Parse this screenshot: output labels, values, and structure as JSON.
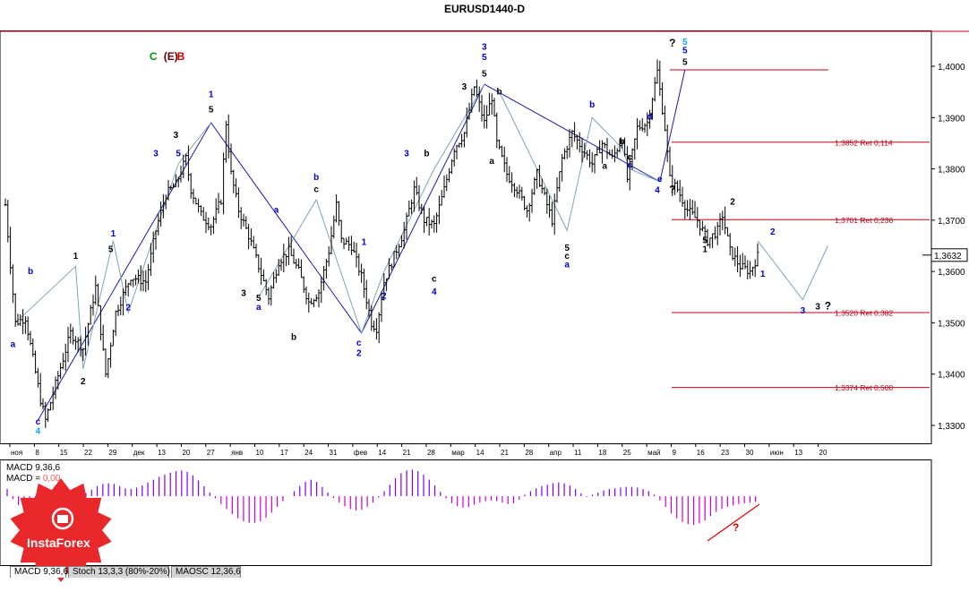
{
  "window": {
    "title": "EURUSD1440-D"
  },
  "price_badge": "1,3632",
  "colors": {
    "up": "#000000",
    "wave_line": "#1a1aaa",
    "thin_line": "#7fa3b8",
    "fib": "#c0001a",
    "macd_pos": "#7b00ff",
    "macd_neg": "#cc00cc",
    "accent_red": "#cc0000"
  },
  "chart_data": [
    {
      "type": "candlestick",
      "title": "EURUSD1440-D",
      "ylim": [
        1.327,
        1.406
      ],
      "y_ticks": [
        "1,4000",
        "1,3900",
        "1,3800",
        "1,3700",
        "1,3600",
        "1,3500",
        "1,3400",
        "1,3300"
      ],
      "y_tick_values": [
        1.4,
        1.39,
        1.38,
        1.37,
        1.36,
        1.35,
        1.34,
        1.33
      ],
      "x_ticks": [
        "ноя",
        "8",
        "15",
        "22",
        "29",
        "дек",
        "13",
        "20",
        "27",
        "янв",
        "10",
        "17",
        "24",
        "31",
        "фев",
        "14",
        "21",
        "28",
        "мар",
        "14",
        "21",
        "28",
        "апр",
        "11",
        "18",
        "25",
        "май",
        "9",
        "16",
        "23",
        "30",
        "июн",
        "13",
        "20"
      ],
      "fib_levels": [
        {
          "price": 1.3993,
          "label": ""
        },
        {
          "price": 1.3852,
          "label": "1,3852 Ret 0,114"
        },
        {
          "price": 1.3701,
          "label": "1,3701 Ret 0,236"
        },
        {
          "price": 1.352,
          "label": "1,3520 Ret 0,382"
        },
        {
          "price": 1.3374,
          "label": "1,3374 Ret 0,500"
        }
      ],
      "price_path": [
        [
          0,
          1.373
        ],
        [
          4,
          1.35
        ],
        [
          8,
          1.351
        ],
        [
          14,
          1.335
        ],
        [
          16,
          1.331
        ],
        [
          20,
          1.338
        ],
        [
          26,
          1.348
        ],
        [
          31,
          1.345
        ],
        [
          36,
          1.357
        ],
        [
          40,
          1.34
        ],
        [
          44,
          1.352
        ],
        [
          50,
          1.359
        ],
        [
          56,
          1.358
        ],
        [
          60,
          1.368
        ],
        [
          64,
          1.375
        ],
        [
          68,
          1.377
        ],
        [
          72,
          1.382
        ],
        [
          74,
          1.376
        ],
        [
          78,
          1.371
        ],
        [
          82,
          1.369
        ],
        [
          86,
          1.374
        ],
        [
          88,
          1.389
        ],
        [
          90,
          1.379
        ],
        [
          93,
          1.372
        ],
        [
          97,
          1.367
        ],
        [
          101,
          1.361
        ],
        [
          105,
          1.355
        ],
        [
          109,
          1.362
        ],
        [
          113,
          1.364
        ],
        [
          117,
          1.36
        ],
        [
          121,
          1.354
        ],
        [
          125,
          1.356
        ],
        [
          129,
          1.364
        ],
        [
          132,
          1.373
        ],
        [
          134,
          1.366
        ],
        [
          138,
          1.365
        ],
        [
          142,
          1.359
        ],
        [
          146,
          1.35
        ],
        [
          148,
          1.349
        ],
        [
          151,
          1.358
        ],
        [
          155,
          1.363
        ],
        [
          159,
          1.368
        ],
        [
          163,
          1.376
        ],
        [
          167,
          1.37
        ],
        [
          171,
          1.369
        ],
        [
          175,
          1.376
        ],
        [
          179,
          1.384
        ],
        [
          183,
          1.387
        ],
        [
          187,
          1.396
        ],
        [
          191,
          1.389
        ],
        [
          194,
          1.394
        ],
        [
          196,
          1.385
        ],
        [
          200,
          1.379
        ],
        [
          204,
          1.376
        ],
        [
          208,
          1.372
        ],
        [
          212,
          1.379
        ],
        [
          216,
          1.373
        ],
        [
          218,
          1.37
        ],
        [
          222,
          1.382
        ],
        [
          226,
          1.387
        ],
        [
          230,
          1.384
        ],
        [
          234,
          1.381
        ],
        [
          238,
          1.385
        ],
        [
          242,
          1.382
        ],
        [
          246,
          1.386
        ],
        [
          248,
          1.378
        ],
        [
          252,
          1.388
        ],
        [
          256,
          1.389
        ],
        [
          260,
          1.399
        ],
        [
          263,
          1.388
        ],
        [
          265,
          1.378
        ],
        [
          268,
          1.376
        ],
        [
          272,
          1.372
        ],
        [
          276,
          1.37
        ],
        [
          280,
          1.366
        ],
        [
          284,
          1.368
        ],
        [
          286,
          1.371
        ],
        [
          289,
          1.364
        ],
        [
          293,
          1.361
        ],
        [
          297,
          1.36
        ],
        [
          300,
          1.363
        ]
      ],
      "wave_labels": [
        {
          "t": "C",
          "b": 59,
          "p": 1.4012,
          "c": "#009900"
        },
        {
          "t": "(E)",
          "b": 66,
          "p": 1.4012,
          "c": "#660000"
        },
        {
          "t": "B",
          "b": 70,
          "p": 1.4012,
          "c": "#cc0000"
        },
        {
          "t": "3",
          "b": 191,
          "p": 1.4032,
          "c": "#0000cc"
        },
        {
          "t": "5",
          "b": 191,
          "p": 1.4012,
          "c": "#0000cc"
        },
        {
          "t": "5",
          "b": 191,
          "p": 1.398,
          "c": "#000000"
        },
        {
          "t": "?",
          "b": 266,
          "p": 1.4038,
          "c": "#000000"
        },
        {
          "t": "5",
          "b": 271,
          "p": 1.4042,
          "c": "#00aaff"
        },
        {
          "t": "5",
          "b": 271,
          "p": 1.4025,
          "c": "#0000cc"
        },
        {
          "t": "5",
          "b": 271,
          "p": 1.4003,
          "c": "#000000"
        },
        {
          "t": "1",
          "b": 82,
          "p": 1.394,
          "c": "#0000cc"
        },
        {
          "t": "5",
          "b": 82,
          "p": 1.391,
          "c": "#000000"
        },
        {
          "t": "3",
          "b": 68,
          "p": 1.386,
          "c": "#000000"
        },
        {
          "t": "3",
          "b": 60,
          "p": 1.3825,
          "c": "#0000cc"
        },
        {
          "t": "5",
          "b": 69,
          "p": 1.3825,
          "c": "#0000cc"
        },
        {
          "t": "b",
          "b": 124,
          "p": 1.3778,
          "c": "#0000cc"
        },
        {
          "t": "c",
          "b": 124,
          "p": 1.3755,
          "c": "#000000"
        },
        {
          "t": "b",
          "b": 197,
          "p": 1.3945,
          "c": "#000000"
        },
        {
          "t": "3",
          "b": 183,
          "p": 1.3955,
          "c": "#000000"
        },
        {
          "t": "b",
          "b": 234,
          "p": 1.392,
          "c": "#0000cc"
        },
        {
          "t": "d",
          "b": 257,
          "p": 1.3896,
          "c": "#0000cc"
        },
        {
          "t": "b",
          "b": 246,
          "p": 1.3848,
          "c": "#000000"
        },
        {
          "t": "c",
          "b": 249,
          "p": 1.3818,
          "c": "#000000"
        },
        {
          "t": "c",
          "b": 249,
          "p": 1.3802,
          "c": "#0000cc"
        },
        {
          "t": "e",
          "b": 261,
          "p": 1.3775,
          "c": "#0000cc"
        },
        {
          "t": "4",
          "b": 260,
          "p": 1.3753,
          "c": "#0000cc"
        },
        {
          "t": "?",
          "b": 266,
          "p": 1.3753,
          "c": "#000000"
        },
        {
          "t": "a",
          "b": 239,
          "p": 1.38,
          "c": "#000000"
        },
        {
          "t": "a",
          "b": 194,
          "p": 1.381,
          "c": "#000000"
        },
        {
          "t": "a",
          "b": 108,
          "p": 1.3715,
          "c": "#0000cc"
        },
        {
          "t": "3",
          "b": 160,
          "p": 1.3825,
          "c": "#0000cc"
        },
        {
          "t": "b",
          "b": 168,
          "p": 1.3825,
          "c": "#000000"
        },
        {
          "t": "1",
          "b": 143,
          "p": 1.3652,
          "c": "#0000cc"
        },
        {
          "t": "c",
          "b": 171,
          "p": 1.358,
          "c": "#000000"
        },
        {
          "t": "4",
          "b": 171,
          "p": 1.3555,
          "c": "#0000cc"
        },
        {
          "t": "2",
          "b": 151,
          "p": 1.3547,
          "c": "#0000cc"
        },
        {
          "t": "5",
          "b": 224,
          "p": 1.364,
          "c": "#000000"
        },
        {
          "t": "c",
          "b": 224,
          "p": 1.3625,
          "c": "#000000"
        },
        {
          "t": "a",
          "b": 224,
          "p": 1.3608,
          "c": "#0000cc"
        },
        {
          "t": "5",
          "b": 101,
          "p": 1.3543,
          "c": "#000000"
        },
        {
          "t": "a",
          "b": 101,
          "p": 1.3525,
          "c": "#0000cc"
        },
        {
          "t": "3",
          "b": 95,
          "p": 1.3552,
          "c": "#000000"
        },
        {
          "t": "b",
          "b": 115,
          "p": 1.3467,
          "c": "#000000"
        },
        {
          "t": "c",
          "b": 141,
          "p": 1.3455,
          "c": "#0000cc"
        },
        {
          "t": "2",
          "b": 141,
          "p": 1.3435,
          "c": "#0000cc"
        },
        {
          "t": "a",
          "b": 3,
          "p": 1.3453,
          "c": "#0000cc"
        },
        {
          "t": "b",
          "b": 10,
          "p": 1.3595,
          "c": "#0000cc"
        },
        {
          "t": "1",
          "b": 28,
          "p": 1.3625,
          "c": "#000000"
        },
        {
          "t": "1",
          "b": 43,
          "p": 1.3668,
          "c": "#0000cc"
        },
        {
          "t": "5",
          "b": 42,
          "p": 1.3638,
          "c": "#000000"
        },
        {
          "t": "2",
          "b": 49,
          "p": 1.3524,
          "c": "#0000cc"
        },
        {
          "t": "2",
          "b": 31,
          "p": 1.338,
          "c": "#000000"
        },
        {
          "t": "c",
          "b": 13,
          "p": 1.3302,
          "c": "#0000cc"
        },
        {
          "t": "4",
          "b": 13,
          "p": 1.3283,
          "c": "#00aaff"
        },
        {
          "t": "2",
          "b": 306,
          "p": 1.3672,
          "c": "#0000cc"
        },
        {
          "t": "2",
          "b": 290,
          "p": 1.373,
          "c": "#000000"
        },
        {
          "t": "1",
          "b": 302,
          "p": 1.359,
          "c": "#0000cc"
        },
        {
          "t": "5",
          "b": 279,
          "p": 1.3655,
          "c": "#000000"
        },
        {
          "t": "1",
          "b": 279,
          "p": 1.3638,
          "c": "#000000"
        },
        {
          "t": "3",
          "b": 318,
          "p": 1.3518,
          "c": "#0000cc"
        },
        {
          "t": "3",
          "b": 324,
          "p": 1.3526,
          "c": "#000000"
        },
        {
          "t": "?",
          "b": 328,
          "p": 1.3526,
          "c": "#000000"
        }
      ],
      "channel_lines": [
        {
          "color": "#1a1aaa",
          "pts": [
            [
              13,
              1.331
            ],
            [
              82,
              1.389
            ],
            [
              142,
              1.348
            ],
            [
              191,
              1.3965
            ],
            [
              261,
              1.3775
            ],
            [
              271,
              1.3993
            ]
          ]
        },
        {
          "color": "#7fa3b8",
          "pts": [
            [
              4,
              1.35
            ],
            [
              28,
              1.361
            ],
            [
              31,
              1.341
            ],
            [
              43,
              1.366
            ],
            [
              49,
              1.352
            ],
            [
              69,
              1.381
            ],
            [
              82,
              1.389
            ]
          ]
        },
        {
          "color": "#7fa3b8",
          "pts": [
            [
              101,
              1.355
            ],
            [
              124,
              1.374
            ],
            [
              142,
              1.348
            ],
            [
              151,
              1.36
            ],
            [
              171,
              1.38
            ],
            [
              191,
              1.3965
            ]
          ]
        },
        {
          "color": "#7fa3b8",
          "pts": [
            [
              197,
              1.395
            ],
            [
              224,
              1.368
            ],
            [
              234,
              1.39
            ],
            [
              246,
              1.384
            ],
            [
              249,
              1.38
            ],
            [
              261,
              1.3775
            ]
          ]
        },
        {
          "color": "#7fa3b8",
          "pts": [
            [
              300,
              1.366
            ],
            [
              318,
              1.3545
            ],
            [
              328,
              1.365
            ]
          ]
        }
      ]
    },
    {
      "type": "bar",
      "title": "MACD 9,36,6",
      "label_macd": "MACD 9,36,6",
      "label_main": "MACD = ",
      "label_value": "0,00",
      "values": [
        0.2,
        -0.08,
        -0.25,
        -0.4,
        -0.55,
        -0.62,
        -0.66,
        -0.66,
        -0.62,
        -0.55,
        -0.45,
        -0.32,
        -0.2,
        -0.05,
        0.08,
        0.18,
        0.28,
        0.34,
        0.36,
        0.34,
        0.28,
        0.22,
        0.2,
        0.24,
        0.3,
        0.38,
        0.46,
        0.54,
        0.6,
        0.66,
        0.7,
        0.72,
        0.68,
        0.58,
        0.44,
        0.28,
        0.1,
        -0.06,
        -0.22,
        -0.36,
        -0.5,
        -0.62,
        -0.7,
        -0.74,
        -0.74,
        -0.7,
        -0.6,
        -0.46,
        -0.3,
        -0.14,
        0.0,
        0.14,
        0.28,
        0.4,
        0.46,
        0.4,
        0.26,
        0.1,
        -0.05,
        -0.18,
        -0.28,
        -0.36,
        -0.4,
        -0.38,
        -0.3,
        -0.18,
        -0.04,
        0.14,
        0.32,
        0.5,
        0.64,
        0.72,
        0.74,
        0.7,
        0.6,
        0.46,
        0.3,
        0.12,
        -0.06,
        -0.2,
        -0.28,
        -0.32,
        -0.3,
        -0.24,
        -0.18,
        -0.14,
        -0.12,
        -0.14,
        -0.18,
        -0.22,
        -0.2,
        -0.1,
        0.04,
        0.14,
        0.22,
        0.28,
        0.32,
        0.36,
        0.38,
        0.36,
        0.3,
        0.2,
        0.08,
        -0.02,
        0.04,
        0.1,
        0.16,
        0.2,
        0.22,
        0.24,
        0.26,
        0.26,
        0.24,
        0.2,
        0.14,
        0.04,
        -0.12,
        -0.3,
        -0.48,
        -0.62,
        -0.72,
        -0.78,
        -0.8,
        -0.76,
        -0.68,
        -0.56,
        -0.44,
        -0.36,
        -0.3,
        -0.26,
        -0.22,
        -0.2,
        -0.18,
        -0.16
      ],
      "annotation": "?"
    }
  ],
  "tabs": [
    {
      "label": "MACD 9,36,6",
      "active": true
    },
    {
      "label": "Stoch 13,3,3 (80%-20%)",
      "active": false
    },
    {
      "label": "MAOSC 12,36,6",
      "active": false
    }
  ],
  "logo": {
    "text": "InstaForex"
  }
}
